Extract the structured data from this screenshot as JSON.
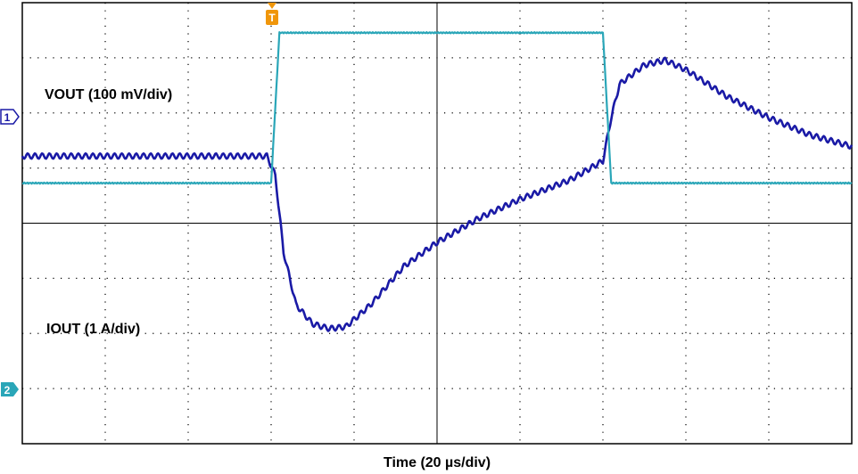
{
  "chart_data": {
    "type": "line",
    "xlabel": "Time (20 µs/div)",
    "x_range": [
      0,
      200
    ],
    "x_unit": "µs",
    "trigger_time": 60,
    "trigger_marker": "T",
    "grid": true,
    "series": [
      {
        "name": "VOUT (100 mV/div)",
        "channel_marker": "1",
        "color": "#1a1aa6",
        "ripple": true,
        "y_unit": "mV",
        "y_range": [
          -300,
          160
        ],
        "points": [
          [
            0,
            0
          ],
          [
            59,
            0
          ],
          [
            61,
            -20
          ],
          [
            63,
            -100
          ],
          [
            66,
            -155
          ],
          [
            70,
            -175
          ],
          [
            74,
            -180
          ],
          [
            78,
            -178
          ],
          [
            84,
            -155
          ],
          [
            92,
            -115
          ],
          [
            100,
            -90
          ],
          [
            110,
            -65
          ],
          [
            120,
            -45
          ],
          [
            132,
            -25
          ],
          [
            140,
            -5
          ],
          [
            142,
            40
          ],
          [
            144,
            75
          ],
          [
            150,
            95
          ],
          [
            155,
            100
          ],
          [
            160,
            90
          ],
          [
            170,
            62
          ],
          [
            180,
            40
          ],
          [
            190,
            22
          ],
          [
            200,
            10
          ]
        ]
      },
      {
        "name": "IOUT (1 A/div)",
        "channel_marker": "2",
        "color": "#2aa6b8",
        "ripple": false,
        "y_unit": "A",
        "y_range": [
          -1.1,
          3.3
        ],
        "points": [
          [
            0,
            1.5
          ],
          [
            60,
            1.5
          ],
          [
            62,
            3.0
          ],
          [
            140,
            3.0
          ],
          [
            142,
            1.5
          ],
          [
            200,
            1.5
          ]
        ]
      }
    ]
  }
}
